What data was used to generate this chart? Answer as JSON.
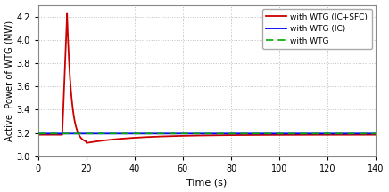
{
  "xlim": [
    0,
    140
  ],
  "ylim": [
    3.0,
    4.3
  ],
  "yticks": [
    3.0,
    3.2,
    3.4,
    3.6,
    3.8,
    4.0,
    4.2
  ],
  "xticks": [
    0,
    20,
    40,
    60,
    80,
    100,
    120,
    140
  ],
  "xlabel": "Time (s)",
  "ylabel": "Active  Power of WTG (MW)",
  "grid_color": "#c0c0c0",
  "bg_color": "#ffffff",
  "legend": [
    "with WTG",
    "with WTG (IC)",
    "with WTG (IC+SFC)"
  ],
  "line_colors": [
    "#00aa00",
    "#0000ff",
    "#cc0000"
  ],
  "green_base": 3.195,
  "blue_base": 3.195,
  "red_base": 3.185,
  "red_peak_time": 12,
  "red_peak_val": 4.225,
  "red_dip_time": 20,
  "red_dip_val": 3.115,
  "red_recover_time": 140,
  "red_recover_val": 3.185,
  "blue_visible_start": 40,
  "blue_visible_end": 46,
  "event_time": 10
}
